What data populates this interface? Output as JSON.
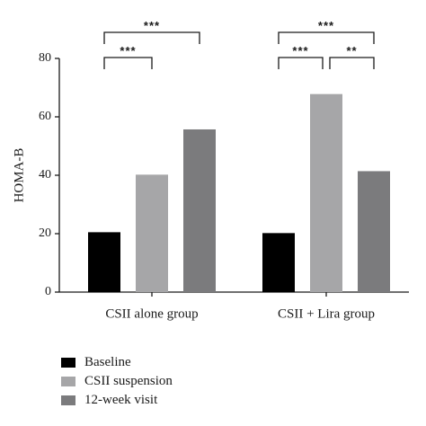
{
  "chart_data": {
    "type": "bar",
    "title": "",
    "xlabel": "",
    "ylabel": "HOMA-B",
    "ylim": [
      0,
      80
    ],
    "yticks": [
      0,
      20,
      40,
      60,
      80
    ],
    "grid": false,
    "legend_position": "bottom-left",
    "categories": [
      "CSII alone group",
      "CSII + Lira group"
    ],
    "series": [
      {
        "name": "Baseline",
        "color": "#000000",
        "values": [
          20.5,
          20.2
        ]
      },
      {
        "name": "CSII suspension",
        "color": "#a6a6a8",
        "values": [
          40.2,
          67.8
        ]
      },
      {
        "name": "12-week visit",
        "color": "#7b7b7d",
        "values": [
          55.7,
          41.4
        ]
      }
    ],
    "significance": [
      {
        "category": 0,
        "from_series": 0,
        "to_series": 2,
        "label": "***",
        "tier": 2
      },
      {
        "category": 0,
        "from_series": 0,
        "to_series": 1,
        "label": "***",
        "tier": 1
      },
      {
        "category": 1,
        "from_series": 0,
        "to_series": 2,
        "label": "***",
        "tier": 2
      },
      {
        "category": 1,
        "from_series": 0,
        "to_series": 1,
        "label": "***",
        "tier": 1
      },
      {
        "category": 1,
        "from_series": 1,
        "to_series": 2,
        "label": "**",
        "tier": 1
      }
    ]
  }
}
